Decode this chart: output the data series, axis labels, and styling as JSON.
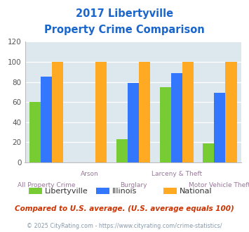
{
  "title_line1": "2017 Libertyville",
  "title_line2": "Property Crime Comparison",
  "categories": [
    "All Property Crime",
    "Arson",
    "Burglary",
    "Larceny & Theft",
    "Motor Vehicle Theft"
  ],
  "libertyville": [
    60,
    0,
    23,
    75,
    19
  ],
  "illinois": [
    85,
    0,
    79,
    89,
    69
  ],
  "national": [
    100,
    100,
    100,
    100,
    100
  ],
  "color_libertyville": "#77cc33",
  "color_illinois": "#3377ff",
  "color_national": "#ffaa22",
  "ylim": [
    0,
    120
  ],
  "yticks": [
    0,
    20,
    40,
    60,
    80,
    100,
    120
  ],
  "legend_labels": [
    "Libertyville",
    "Illinois",
    "National"
  ],
  "subtitle": "Compared to U.S. average. (U.S. average equals 100)",
  "footer": "© 2025 CityRating.com - https://www.cityrating.com/crime-statistics/",
  "title_color": "#1a66cc",
  "subtitle_color": "#cc3300",
  "footer_color": "#8899aa",
  "x_label_color": "#997799",
  "background_color": "#dde8ee"
}
